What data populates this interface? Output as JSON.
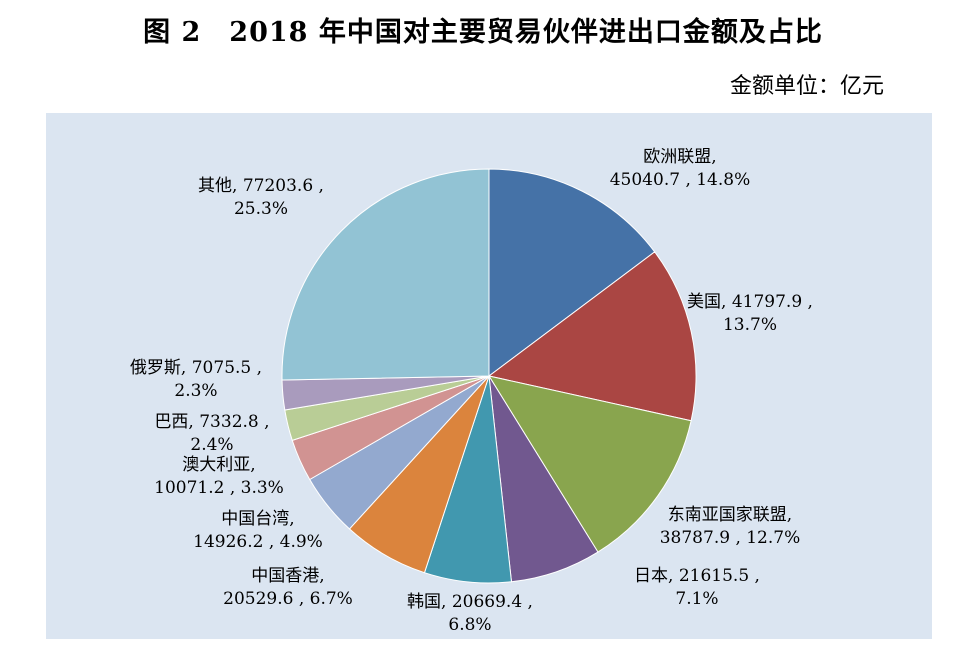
{
  "title": "图 2　2018 年中国对主要贸易伙伴进出口金额及占比",
  "unit_label": "金额单位：亿元",
  "chart_data": {
    "type": "pie",
    "slices": [
      {
        "name": "欧洲联盟",
        "value": 45040.7,
        "percent": "14.8%",
        "color": "#4572a7",
        "label_lines": [
          "欧洲联盟,",
          "45040.7 , 14.8%"
        ]
      },
      {
        "name": "美国",
        "value": 41797.9,
        "percent": "13.7%",
        "color": "#aa4643",
        "label_lines": [
          "美国, 41797.9 ,",
          "13.7%"
        ]
      },
      {
        "name": "东南亚国家联盟",
        "value": 38787.9,
        "percent": "12.7%",
        "color": "#89a54e",
        "label_lines": [
          "东南亚国家联盟,",
          "38787.9 , 12.7%"
        ]
      },
      {
        "name": "日本",
        "value": 21615.5,
        "percent": "7.1%",
        "color": "#71588f",
        "label_lines": [
          "日本, 21615.5 ,",
          "7.1%"
        ]
      },
      {
        "name": "韩国",
        "value": 20669.4,
        "percent": "6.8%",
        "color": "#4198af",
        "label_lines": [
          "韩国, 20669.4 ,",
          "6.8%"
        ]
      },
      {
        "name": "中国香港",
        "value": 20529.6,
        "percent": "6.7%",
        "color": "#db843d",
        "label_lines": [
          "中国香港,",
          "20529.6 , 6.7%"
        ]
      },
      {
        "name": "中国台湾",
        "value": 14926.2,
        "percent": "4.9%",
        "color": "#93a9cf",
        "label_lines": [
          "中国台湾,",
          "14926.2 , 4.9%"
        ]
      },
      {
        "name": "澳大利亚",
        "value": 10071.2,
        "percent": "3.3%",
        "color": "#d19392",
        "label_lines": [
          "澳大利亚,",
          "10071.2 , 3.3%"
        ]
      },
      {
        "name": "巴西",
        "value": 7332.8,
        "percent": "2.4%",
        "color": "#b9cd96",
        "label_lines": [
          "巴西, 7332.8 ,",
          "2.4%"
        ]
      },
      {
        "name": "俄罗斯",
        "value": 7075.5,
        "percent": "2.3%",
        "color": "#a99bbd",
        "label_lines": [
          "俄罗斯, 7075.5 ,",
          "2.3%"
        ]
      },
      {
        "name": "其他",
        "value": 77203.6,
        "percent": "25.3%",
        "color": "#92c3d4",
        "label_lines": [
          "其他, 77203.6 ,",
          "25.3%"
        ]
      }
    ]
  }
}
